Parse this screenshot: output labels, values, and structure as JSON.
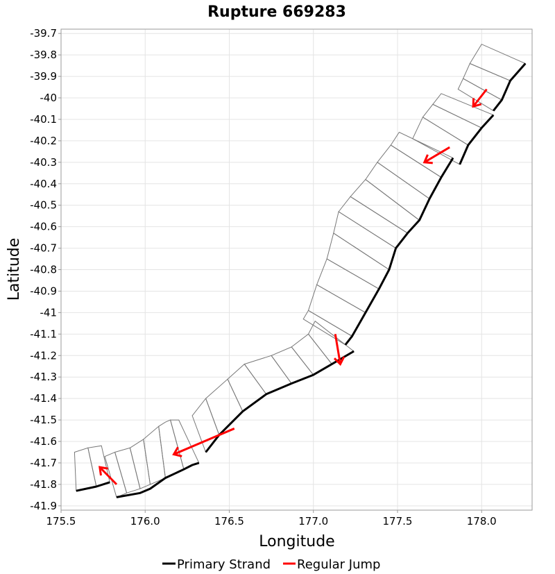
{
  "chart_data": {
    "type": "line",
    "title": "Rupture 669283",
    "xlabel": "Longitude",
    "ylabel": "Latitude",
    "xlim": [
      175.5,
      178.3
    ],
    "ylim": [
      -41.92,
      -39.68
    ],
    "x_ticks": [
      "175.5",
      "176.0",
      "176.5",
      "177.0",
      "177.5",
      "178.0"
    ],
    "x_tick_values": [
      175.5,
      176.0,
      176.5,
      177.0,
      177.5,
      178.0
    ],
    "y_ticks": [
      "-39.7",
      "-39.8",
      "-39.9",
      "-40",
      "-40.1",
      "-40.2",
      "-40.3",
      "-40.4",
      "-40.5",
      "-40.6",
      "-40.7",
      "-40.8",
      "-40.9",
      "-41",
      "-41.1",
      "-41.2",
      "-41.3",
      "-41.4",
      "-41.5",
      "-41.6",
      "-41.7",
      "-41.8",
      "-41.9"
    ],
    "y_tick_values": [
      -39.7,
      -39.8,
      -39.9,
      -40.0,
      -40.1,
      -40.2,
      -40.3,
      -40.4,
      -40.5,
      -40.6,
      -40.7,
      -40.8,
      -40.9,
      -41.0,
      -41.1,
      -41.2,
      -41.3,
      -41.4,
      -41.5,
      -41.6,
      -41.7,
      -41.8,
      -41.9
    ],
    "grid": true,
    "legend_position": "bottom-center",
    "legend": [
      {
        "label": "Primary Strand",
        "color": "#000000"
      },
      {
        "label": "Regular Jump",
        "color": "#ff0000"
      }
    ],
    "colors": {
      "primary_strand": "#000000",
      "regular_jump": "#ff0000",
      "section_outline": "#777777",
      "grid": "#e4e4e4"
    },
    "fault_sections": [
      {
        "name": "seg1-p1",
        "points": [
          [
            175.58,
            -41.65
          ],
          [
            175.66,
            -41.63
          ],
          [
            175.71,
            -41.81
          ],
          [
            175.59,
            -41.83
          ]
        ]
      },
      {
        "name": "seg1-p2",
        "points": [
          [
            175.66,
            -41.63
          ],
          [
            175.74,
            -41.62
          ],
          [
            175.79,
            -41.79
          ],
          [
            175.71,
            -41.81
          ]
        ]
      },
      {
        "name": "seg2-p1",
        "points": [
          [
            175.76,
            -41.67
          ],
          [
            175.82,
            -41.65
          ],
          [
            175.89,
            -41.84
          ],
          [
            175.83,
            -41.86
          ]
        ]
      },
      {
        "name": "seg2-p2",
        "points": [
          [
            175.82,
            -41.65
          ],
          [
            175.91,
            -41.63
          ],
          [
            175.97,
            -41.82
          ],
          [
            175.89,
            -41.84
          ]
        ]
      },
      {
        "name": "seg2-p3",
        "points": [
          [
            175.91,
            -41.63
          ],
          [
            175.99,
            -41.59
          ],
          [
            176.03,
            -41.8
          ],
          [
            175.97,
            -41.82
          ]
        ]
      },
      {
        "name": "seg2-p4",
        "points": [
          [
            175.99,
            -41.59
          ],
          [
            176.08,
            -41.53
          ],
          [
            176.12,
            -41.77
          ],
          [
            176.03,
            -41.8
          ]
        ]
      },
      {
        "name": "seg2-p5",
        "points": [
          [
            176.08,
            -41.53
          ],
          [
            176.12,
            -41.51
          ],
          [
            176.15,
            -41.5
          ],
          [
            176.23,
            -41.73
          ],
          [
            176.12,
            -41.77
          ]
        ]
      },
      {
        "name": "seg2-p6",
        "points": [
          [
            176.15,
            -41.5
          ],
          [
            176.2,
            -41.5
          ],
          [
            176.32,
            -41.7
          ],
          [
            176.28,
            -41.71
          ],
          [
            176.23,
            -41.73
          ]
        ]
      },
      {
        "name": "seg3-p1",
        "points": [
          [
            176.28,
            -41.48
          ],
          [
            176.36,
            -41.4
          ],
          [
            176.44,
            -41.57
          ],
          [
            176.36,
            -41.65
          ]
        ]
      },
      {
        "name": "seg3-p2",
        "points": [
          [
            176.36,
            -41.4
          ],
          [
            176.49,
            -41.31
          ],
          [
            176.58,
            -41.46
          ],
          [
            176.44,
            -41.57
          ]
        ]
      },
      {
        "name": "seg3-p3",
        "points": [
          [
            176.49,
            -41.31
          ],
          [
            176.59,
            -41.24
          ],
          [
            176.72,
            -41.38
          ],
          [
            176.58,
            -41.46
          ]
        ]
      },
      {
        "name": "seg3-p4",
        "points": [
          [
            176.59,
            -41.24
          ],
          [
            176.75,
            -41.2
          ],
          [
            176.87,
            -41.33
          ],
          [
            176.72,
            -41.38
          ]
        ]
      },
      {
        "name": "seg3-p5",
        "points": [
          [
            176.75,
            -41.2
          ],
          [
            176.87,
            -41.16
          ],
          [
            177.0,
            -41.29
          ],
          [
            176.87,
            -41.33
          ]
        ]
      },
      {
        "name": "seg3-p6",
        "points": [
          [
            176.87,
            -41.16
          ],
          [
            176.97,
            -41.1
          ],
          [
            177.11,
            -41.24
          ],
          [
            177.0,
            -41.29
          ]
        ]
      },
      {
        "name": "seg3-p7",
        "points": [
          [
            176.97,
            -41.1
          ],
          [
            177.01,
            -41.04
          ],
          [
            177.24,
            -41.18
          ],
          [
            177.11,
            -41.24
          ]
        ]
      },
      {
        "name": "seg4-p1",
        "points": [
          [
            176.94,
            -41.03
          ],
          [
            176.97,
            -40.99
          ],
          [
            177.23,
            -41.11
          ],
          [
            177.19,
            -41.15
          ]
        ]
      },
      {
        "name": "seg4-p2",
        "points": [
          [
            176.97,
            -40.99
          ],
          [
            177.02,
            -40.87
          ],
          [
            177.31,
            -41.0
          ],
          [
            177.23,
            -41.11
          ]
        ]
      },
      {
        "name": "seg4-p3",
        "points": [
          [
            177.02,
            -40.87
          ],
          [
            177.08,
            -40.75
          ],
          [
            177.39,
            -40.89
          ],
          [
            177.31,
            -41.0
          ]
        ]
      },
      {
        "name": "seg4-p4",
        "points": [
          [
            177.08,
            -40.75
          ],
          [
            177.12,
            -40.63
          ],
          [
            177.45,
            -40.8
          ],
          [
            177.39,
            -40.89
          ]
        ]
      },
      {
        "name": "seg4-p5",
        "points": [
          [
            177.12,
            -40.63
          ],
          [
            177.15,
            -40.53
          ],
          [
            177.49,
            -40.7
          ],
          [
            177.45,
            -40.8
          ]
        ]
      },
      {
        "name": "seg4-p6",
        "points": [
          [
            177.15,
            -40.53
          ],
          [
            177.22,
            -40.46
          ],
          [
            177.56,
            -40.63
          ],
          [
            177.49,
            -40.7
          ]
        ]
      },
      {
        "name": "seg5-p1",
        "points": [
          [
            177.22,
            -40.46
          ],
          [
            177.31,
            -40.38
          ],
          [
            177.63,
            -40.57
          ],
          [
            177.56,
            -40.63
          ]
        ]
      },
      {
        "name": "seg5-p2",
        "points": [
          [
            177.31,
            -40.38
          ],
          [
            177.38,
            -40.3
          ],
          [
            177.69,
            -40.47
          ],
          [
            177.63,
            -40.57
          ]
        ]
      },
      {
        "name": "seg5-p3",
        "points": [
          [
            177.38,
            -40.3
          ],
          [
            177.46,
            -40.22
          ],
          [
            177.76,
            -40.37
          ],
          [
            177.69,
            -40.47
          ]
        ]
      },
      {
        "name": "seg5-p4",
        "points": [
          [
            177.46,
            -40.22
          ],
          [
            177.51,
            -40.16
          ],
          [
            177.83,
            -40.28
          ],
          [
            177.76,
            -40.37
          ]
        ]
      },
      {
        "name": "seg6-p1",
        "points": [
          [
            177.59,
            -40.19
          ],
          [
            177.65,
            -40.09
          ],
          [
            177.92,
            -40.22
          ],
          [
            177.87,
            -40.31
          ]
        ]
      },
      {
        "name": "seg6-p2",
        "points": [
          [
            177.65,
            -40.09
          ],
          [
            177.71,
            -40.03
          ],
          [
            178.0,
            -40.14
          ],
          [
            177.92,
            -40.22
          ]
        ]
      },
      {
        "name": "seg6-p3",
        "points": [
          [
            177.71,
            -40.03
          ],
          [
            177.76,
            -39.98
          ],
          [
            178.07,
            -40.08
          ],
          [
            178.0,
            -40.14
          ]
        ]
      },
      {
        "name": "seg7-p1",
        "points": [
          [
            177.86,
            -39.96
          ],
          [
            177.89,
            -39.91
          ],
          [
            178.12,
            -40.01
          ],
          [
            178.07,
            -40.06
          ]
        ]
      },
      {
        "name": "seg7-p2",
        "points": [
          [
            177.89,
            -39.91
          ],
          [
            177.93,
            -39.84
          ],
          [
            178.17,
            -39.92
          ],
          [
            178.12,
            -40.01
          ]
        ]
      },
      {
        "name": "seg7-p3",
        "points": [
          [
            177.93,
            -39.84
          ],
          [
            178.0,
            -39.75
          ],
          [
            178.26,
            -39.84
          ],
          [
            178.17,
            -39.92
          ]
        ]
      }
    ],
    "primary_strand": [
      {
        "name": "strand-1",
        "points": [
          [
            175.59,
            -41.83
          ],
          [
            175.71,
            -41.81
          ],
          [
            175.79,
            -41.79
          ]
        ]
      },
      {
        "name": "strand-2",
        "points": [
          [
            175.83,
            -41.86
          ],
          [
            175.97,
            -41.84
          ],
          [
            176.03,
            -41.82
          ],
          [
            176.12,
            -41.77
          ],
          [
            176.23,
            -41.73
          ],
          [
            176.28,
            -41.71
          ],
          [
            176.32,
            -41.7
          ]
        ]
      },
      {
        "name": "strand-3",
        "points": [
          [
            176.36,
            -41.65
          ],
          [
            176.44,
            -41.57
          ],
          [
            176.58,
            -41.46
          ],
          [
            176.72,
            -41.38
          ],
          [
            176.87,
            -41.33
          ],
          [
            177.0,
            -41.29
          ],
          [
            177.11,
            -41.24
          ],
          [
            177.24,
            -41.18
          ]
        ]
      },
      {
        "name": "strand-4",
        "points": [
          [
            177.19,
            -41.15
          ],
          [
            177.23,
            -41.11
          ],
          [
            177.31,
            -41.0
          ],
          [
            177.39,
            -40.89
          ],
          [
            177.45,
            -40.8
          ],
          [
            177.49,
            -40.7
          ],
          [
            177.56,
            -40.63
          ],
          [
            177.63,
            -40.57
          ],
          [
            177.69,
            -40.47
          ],
          [
            177.76,
            -40.37
          ],
          [
            177.83,
            -40.28
          ]
        ]
      },
      {
        "name": "strand-5",
        "points": [
          [
            177.87,
            -40.31
          ],
          [
            177.92,
            -40.22
          ],
          [
            178.0,
            -40.14
          ],
          [
            178.07,
            -40.08
          ]
        ]
      },
      {
        "name": "strand-6",
        "points": [
          [
            178.07,
            -40.06
          ],
          [
            178.12,
            -40.01
          ],
          [
            178.17,
            -39.92
          ],
          [
            178.26,
            -39.84
          ]
        ]
      }
    ],
    "regular_jumps": [
      {
        "name": "jump-1",
        "from": [
          175.83,
          -41.8
        ],
        "to": [
          175.73,
          -41.72
        ]
      },
      {
        "name": "jump-2",
        "from": [
          176.53,
          -41.54
        ],
        "to": [
          176.17,
          -41.66
        ]
      },
      {
        "name": "jump-3",
        "from": [
          177.13,
          -41.1
        ],
        "to": [
          177.16,
          -41.24
        ]
      },
      {
        "name": "jump-4",
        "from": [
          177.81,
          -40.23
        ],
        "to": [
          177.66,
          -40.3
        ]
      },
      {
        "name": "jump-5",
        "from": [
          178.03,
          -39.96
        ],
        "to": [
          177.95,
          -40.04
        ]
      }
    ]
  }
}
